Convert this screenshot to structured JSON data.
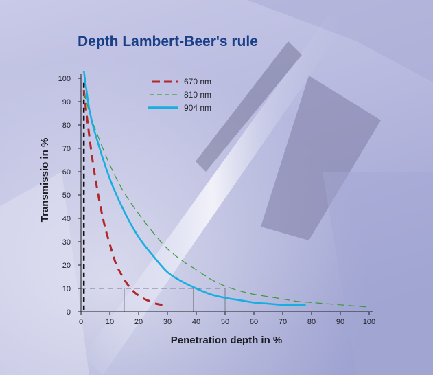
{
  "chart_data": {
    "type": "line",
    "title": "Depth Lambert-Beer's rule",
    "xlabel": "Penetration depth in %",
    "ylabel": "Transmissio in %",
    "xlim": [
      0,
      100
    ],
    "ylim": [
      0,
      100
    ],
    "xticks": [
      "0",
      "10",
      "20",
      "30",
      "40",
      "50",
      "60",
      "70",
      "80",
      "90",
      "100"
    ],
    "yticks": [
      "0",
      "10",
      "20",
      "30",
      "40",
      "50",
      "60",
      "70",
      "80",
      "90",
      "100"
    ],
    "legend_position": "top",
    "series": [
      {
        "name": "670 nm",
        "color": "#b0282a",
        "style": "dashed-thick",
        "x": [
          1,
          2,
          4,
          6,
          8,
          10,
          12,
          14,
          16,
          18,
          20,
          22,
          24,
          26,
          28,
          30
        ],
        "y": [
          95,
          84,
          65,
          50,
          38,
          29,
          21,
          16,
          12,
          9,
          7,
          5.5,
          4.5,
          3.5,
          3,
          2.5
        ]
      },
      {
        "name": "810 nm",
        "color": "#3d9a3a",
        "style": "dashed-thin",
        "x": [
          1,
          3,
          5,
          10,
          15,
          20,
          25,
          30,
          35,
          40,
          45,
          50,
          55,
          60,
          65,
          70,
          75,
          80,
          85,
          90,
          95,
          100
        ],
        "y": [
          94,
          85,
          78,
          63,
          51,
          42,
          34,
          27,
          22,
          18,
          14,
          11,
          9,
          7.5,
          6.5,
          5.5,
          4.5,
          4,
          3.5,
          3,
          2.5,
          2
        ]
      },
      {
        "name": "904 nm",
        "color": "#19aee0",
        "style": "solid",
        "x": [
          1,
          2,
          3,
          5,
          10,
          15,
          20,
          25,
          30,
          35,
          40,
          45,
          50,
          55,
          60,
          65,
          70,
          75,
          78
        ],
        "y": [
          103,
          94,
          86,
          76,
          57,
          43,
          32,
          24,
          17,
          13,
          10,
          7.5,
          6,
          5,
          4,
          3.5,
          3,
          3,
          3
        ]
      }
    ],
    "reference_lines": {
      "y_value": 10,
      "x_values": [
        15,
        39,
        50
      ],
      "x_max": 50,
      "vertical_x": 1,
      "vertical_color": "#101010"
    },
    "colors": {
      "title": "#1a3f86",
      "background_top": "#c6c7e6",
      "background_bottom": "#9b9fcf",
      "grid_ref": "#7a7a8c"
    }
  }
}
